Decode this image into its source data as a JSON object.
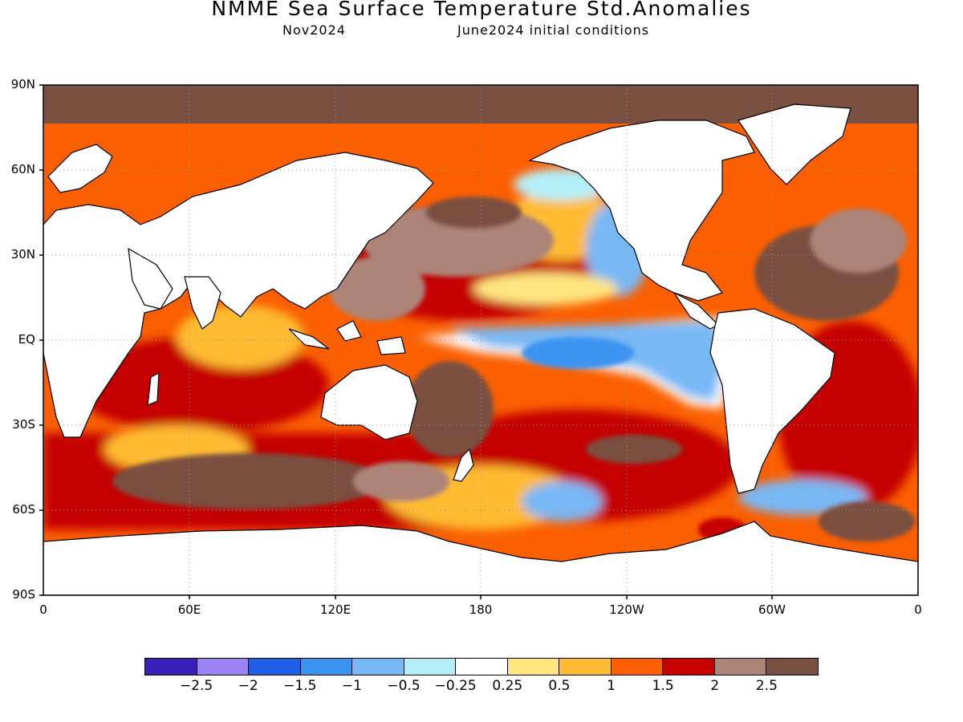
{
  "header": {
    "title": "NMME Sea Surface Temperature Std.Anomalies",
    "valid_month": "Nov2024",
    "initial_conditions": "June2024 initial conditions"
  },
  "map": {
    "projection": "equirectangular",
    "lat_labels": [
      "90N",
      "60N",
      "30N",
      "EQ",
      "30S",
      "60S",
      "90S"
    ],
    "lon_labels": [
      "0",
      "60E",
      "120E",
      "180",
      "120W",
      "60W",
      "0"
    ],
    "grid": "dotted",
    "land_color": "#ffffff"
  },
  "colorbar": {
    "colors": [
      "#3a1fb8",
      "#9b82f5",
      "#1f5ee6",
      "#3b93f2",
      "#78b8f5",
      "#b4f0fa",
      "#ffffff",
      "#ffe680",
      "#ffbb33",
      "#fb5f00",
      "#c40000",
      "#ac8478",
      "#7a5040"
    ],
    "labels": [
      "−2.5",
      "−2",
      "−1.5",
      "−1",
      "−0.5",
      "−0.25",
      "0.25",
      "0.5",
      "1",
      "1.5",
      "2",
      "2.5"
    ]
  }
}
